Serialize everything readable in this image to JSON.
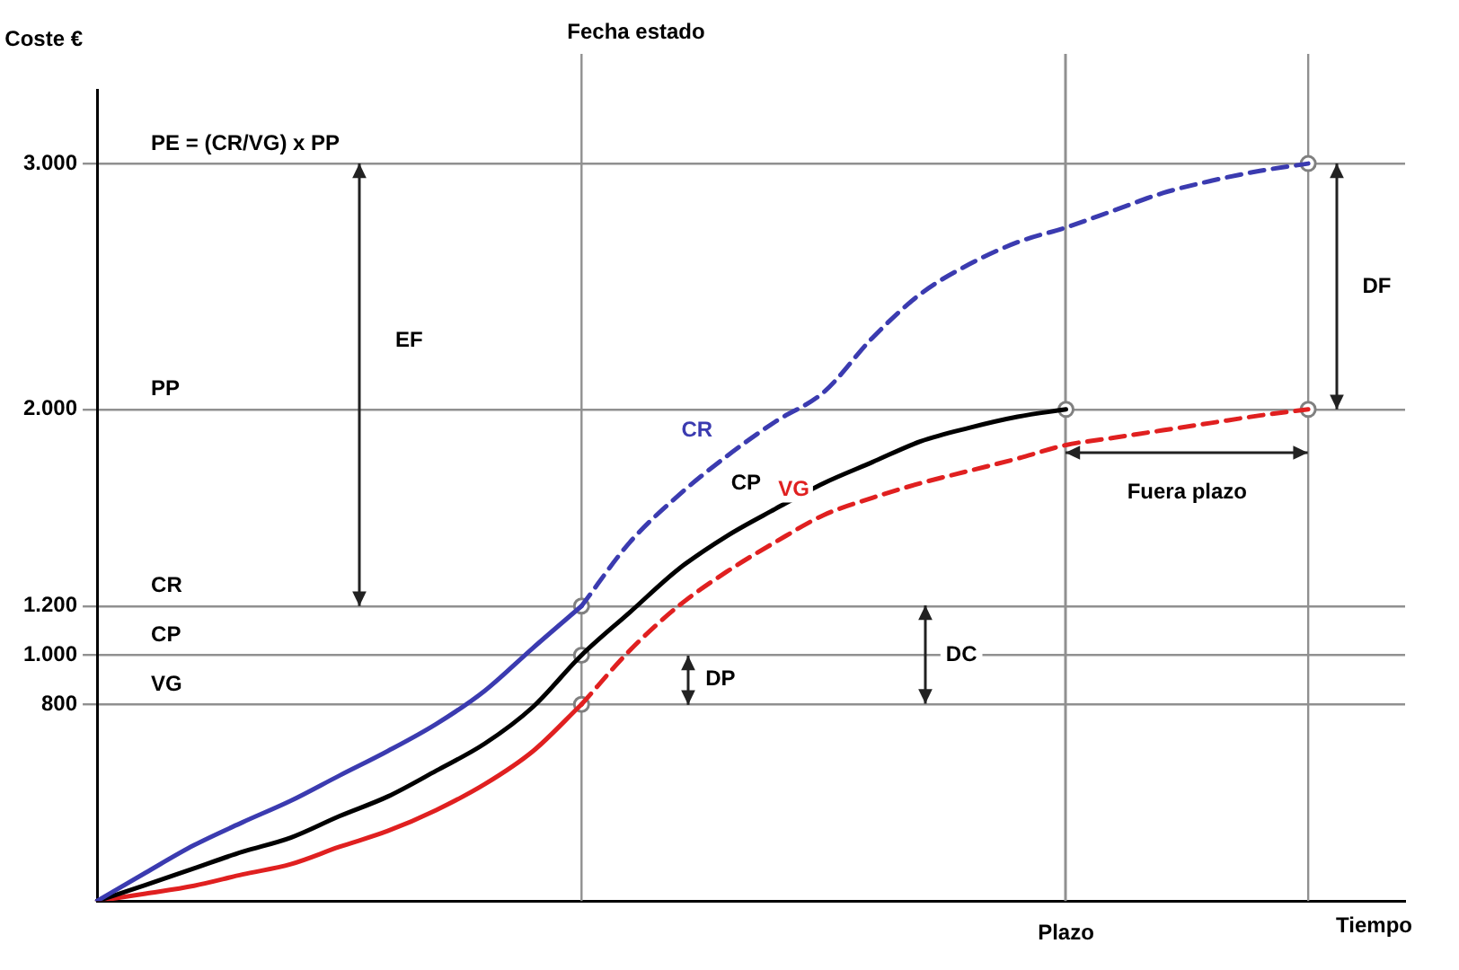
{
  "chart_data": {
    "type": "line",
    "xlabel": "Tiempo",
    "ylabel": "Coste €",
    "categories": [
      null,
      null,
      null,
      null,
      null,
      null,
      null,
      null,
      null,
      null,
      null,
      null,
      null,
      null,
      null,
      null,
      null,
      null,
      null,
      null,
      "Plazo",
      null,
      null,
      null,
      null,
      null,
      null,
      null
    ],
    "ylim": [
      0,
      3300
    ],
    "yticks": [
      {
        "value": 800,
        "label": "800"
      },
      {
        "value": 1000,
        "label": "1.000"
      },
      {
        "value": 1200,
        "label": "1.200"
      },
      {
        "value": 2000,
        "label": "2.000"
      },
      {
        "value": 3000,
        "label": "3.000"
      }
    ],
    "legend": false,
    "series": [
      {
        "color": "#3b3bb0",
        "line_style": "solid",
        "values": [
          0,
          115,
          227,
          320,
          408,
          510,
          610,
          720,
          855,
          1030,
          1200,
          null,
          null,
          null,
          null,
          null,
          null,
          null,
          null,
          null,
          null,
          null,
          null,
          null,
          null,
          null,
          null,
          null
        ]
      },
      {
        "name": "CR",
        "color": "#3b3bb0",
        "line_style": "dashed",
        "values": [
          null,
          null,
          null,
          null,
          null,
          null,
          null,
          null,
          null,
          null,
          1200,
          1460,
          1650,
          1810,
          1950,
          2070,
          2290,
          2470,
          2590,
          2680,
          2740,
          2810,
          2880,
          2930,
          2970,
          3000,
          null,
          null
        ]
      },
      {
        "name": "CP",
        "color": "#000000",
        "line_style": "solid",
        "values": [
          0,
          65,
          133,
          200,
          258,
          345,
          425,
          530,
          640,
          790,
          1000,
          1175,
          1350,
          1485,
          1595,
          1700,
          1785,
          1870,
          1925,
          1970,
          2000,
          null,
          null,
          null,
          null,
          null,
          null,
          null
        ]
      },
      {
        "color": "#e02020",
        "line_style": "solid",
        "values": [
          0,
          30,
          62,
          108,
          150,
          220,
          285,
          370,
          475,
          610,
          800,
          null,
          null,
          null,
          null,
          null,
          null,
          null,
          null,
          null,
          null,
          null,
          null,
          null,
          null,
          null,
          null,
          null
        ]
      },
      {
        "name": "VG",
        "color": "#e02020",
        "line_style": "dashed",
        "values": [
          null,
          null,
          null,
          null,
          null,
          null,
          null,
          null,
          null,
          null,
          800,
          1020,
          1200,
          1340,
          1460,
          1570,
          1640,
          1700,
          1750,
          1800,
          1855,
          1885,
          1915,
          1945,
          1975,
          2000,
          null,
          null
        ]
      },
      {
        "type": "scatter",
        "color": "#ffffff",
        "marker": "circle",
        "values": [
          null,
          null,
          null,
          null,
          null,
          null,
          null,
          null,
          null,
          null,
          1200,
          null,
          null,
          null,
          null,
          null,
          null,
          null,
          null,
          null,
          null,
          null,
          null,
          null,
          null,
          3000,
          null,
          null
        ]
      },
      {
        "type": "scatter",
        "color": "#ffffff",
        "marker": "circle",
        "values": [
          null,
          null,
          null,
          null,
          null,
          null,
          null,
          null,
          null,
          null,
          1000,
          null,
          null,
          null,
          null,
          null,
          null,
          null,
          null,
          null,
          2000,
          null,
          null,
          null,
          null,
          null,
          null,
          null
        ]
      },
      {
        "type": "scatter",
        "color": "#ffffff",
        "marker": "circle",
        "values": [
          null,
          null,
          null,
          null,
          null,
          null,
          null,
          null,
          null,
          null,
          800,
          null,
          null,
          null,
          null,
          null,
          null,
          null,
          null,
          null,
          null,
          null,
          null,
          null,
          null,
          2000,
          null,
          null
        ]
      }
    ],
    "grid": "y",
    "ref_lines": [
      {
        "axis": "x",
        "value": "Plazo",
        "label": null,
        "color": "#909090"
      }
    ],
    "annotations": [
      "EF",
      "DC",
      "DP",
      "DF",
      "Fuera plazo",
      "Fecha estado",
      "PE = (CR/VG) x PP",
      "PP",
      "CR",
      "CP",
      "VG"
    ]
  }
}
